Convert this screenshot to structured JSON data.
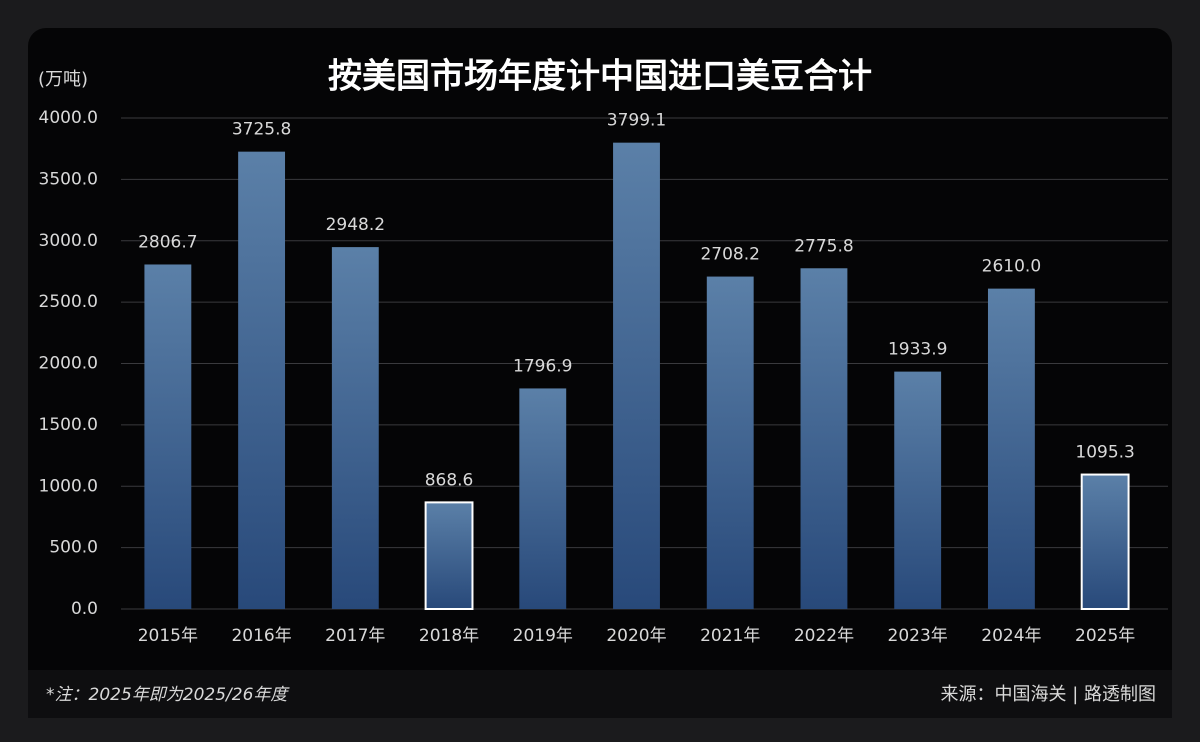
{
  "chart_data": {
    "type": "bar",
    "title": "按美国市场年度计中国进口美豆合计",
    "y_axis_label": "(万吨)",
    "categories": [
      "2015年",
      "2016年",
      "2017年",
      "2018年",
      "2019年",
      "2020年",
      "2021年",
      "2022年",
      "2023年",
      "2024年",
      "2025年"
    ],
    "values": [
      2806.7,
      3725.8,
      2948.2,
      868.6,
      1796.9,
      3799.1,
      2708.2,
      2775.8,
      1933.9,
      2610.0,
      1095.3
    ],
    "value_labels": [
      "2806.7",
      "3725.8",
      "2948.2",
      "868.6",
      "1796.9",
      "3799.1",
      "2708.2",
      "2775.8",
      "1933.9",
      "2610.0",
      "1095.3"
    ],
    "outline_colors": [
      null,
      null,
      null,
      "#ffffff",
      null,
      null,
      null,
      null,
      null,
      null,
      "#ffffff"
    ],
    "ylim": [
      0,
      4000
    ],
    "yticks": [
      {
        "value": 0,
        "label": "0.0"
      },
      {
        "value": 500,
        "label": "500.0"
      },
      {
        "value": 1000,
        "label": "1000.0"
      },
      {
        "value": 1500,
        "label": "1500.0"
      },
      {
        "value": 2000,
        "label": "2000.0"
      },
      {
        "value": 2500,
        "label": "2500.0"
      },
      {
        "value": 3000,
        "label": "3000.0"
      },
      {
        "value": 3500,
        "label": "3500.0"
      },
      {
        "value": 4000,
        "label": "4000.0"
      }
    ],
    "grid": true,
    "note": "*注：2025年即为2025/26年度",
    "source": "来源：中国海关 | 路透制图"
  }
}
